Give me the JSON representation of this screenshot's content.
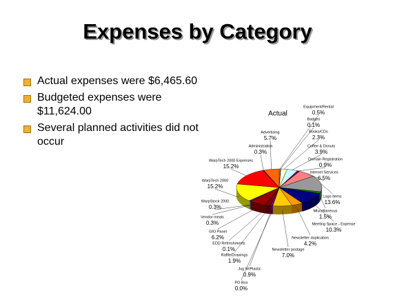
{
  "title": "Expenses by Category",
  "bullets": [
    "Actual expenses were $6,465.60",
    "Budgeted expenses were $11,624.00",
    "Several planned activities did not occur"
  ],
  "chart_data": {
    "type": "pie",
    "title": "Actual",
    "categories": [
      "Equipment/Rental",
      "Badges",
      "Books/CDs",
      "Coffee & Donuts",
      "Domain Registration",
      "Internet Services",
      "Logo Items",
      "Miscellaneous",
      "Meeting Space - Expense",
      "Newsletter duplication",
      "Newsletter postage",
      "PO Box",
      "Jug W/Plastic",
      "Raffle/Drawings",
      "EDD Refreshments",
      "GIO Panel",
      "Vendor meals",
      "WarpStock 2000",
      "WarpTech 2000",
      "WarpTech 2000 Expenses",
      "Administration",
      "Advertising"
    ],
    "values": [
      0.5,
      0.1,
      2.3,
      3.9,
      0.9,
      6.5,
      13.6,
      1.5,
      10.3,
      4.2,
      7.0,
      0.0,
      0.9,
      1.9,
      0.1,
      6.2,
      0.3,
      0.3,
      15.2,
      15.2,
      0.3,
      5.7
    ],
    "value_labels": [
      "0.5%",
      "0.1%",
      "2.3%",
      "3.9%",
      "0.9%",
      "6.5%",
      "13.6%",
      "1.5%",
      "10.3%",
      "4.2%",
      "7.0%",
      "0.0%",
      "0.9%",
      "1.9%",
      "0.1%",
      "6.2%",
      "0.3%",
      "0.3%",
      "15.2%",
      "15.2%",
      "0.3%",
      "5.7%"
    ],
    "colors": [
      "#9999ff",
      "#993366",
      "#ffffcc",
      "#ccffff",
      "#660066",
      "#ff8080",
      "#999999",
      "#008000",
      "#000080",
      "#ff9900",
      "#ffcc00",
      "#00ffff",
      "#800080",
      "#800000",
      "#008080",
      "#990000",
      "#3366ff",
      "#33cccc",
      "#ffff00",
      "#ff0000",
      "#0000ff",
      "#ff6600"
    ]
  }
}
